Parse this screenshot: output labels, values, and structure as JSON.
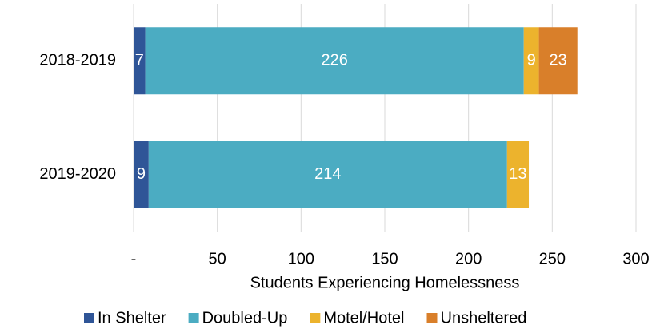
{
  "chart_data": {
    "type": "stacked-bar-horizontal",
    "categories": [
      "2018-2019",
      "2019-2020"
    ],
    "series": [
      {
        "name": "In Shelter",
        "color": "#2f5597",
        "values": [
          7,
          9
        ]
      },
      {
        "name": "Doubled-Up",
        "color": "#4bacc2",
        "values": [
          226,
          214
        ]
      },
      {
        "name": "Motel/Hotel",
        "color": "#ecb32d",
        "values": [
          9,
          13
        ]
      },
      {
        "name": "Unsheltered",
        "color": "#d97f2a",
        "values": [
          23,
          null
        ]
      }
    ],
    "xlabel": "Students Experiencing Homelessness",
    "xlim": [
      0,
      300
    ],
    "xticks": [
      {
        "value": 0,
        "label": "-"
      },
      50,
      100,
      150,
      200,
      250,
      300
    ],
    "grid": true,
    "legend": "bottom"
  }
}
